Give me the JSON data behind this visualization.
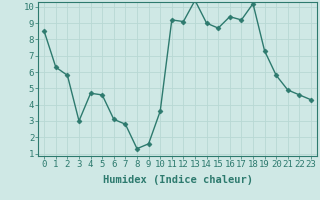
{
  "xlabel": "Humidex (Indice chaleur)",
  "ylabel": "",
  "x_values": [
    0,
    1,
    2,
    3,
    4,
    5,
    6,
    7,
    8,
    9,
    10,
    11,
    12,
    13,
    14,
    15,
    16,
    17,
    18,
    19,
    20,
    21,
    22,
    23
  ],
  "y_values": [
    8.5,
    6.3,
    5.8,
    3.0,
    4.7,
    4.6,
    3.1,
    2.8,
    1.3,
    1.6,
    3.6,
    9.2,
    9.1,
    10.4,
    9.0,
    8.7,
    9.4,
    9.2,
    10.2,
    7.3,
    5.8,
    4.9,
    4.6,
    4.3
  ],
  "line_color": "#2d7a6e",
  "marker": "D",
  "marker_size": 2.5,
  "line_width": 1.0,
  "background_color": "#cfe8e5",
  "grid_color": "#b8d8d4",
  "ylim_min": 1,
  "ylim_max": 10,
  "xlim_min": 0,
  "xlim_max": 23,
  "yticks": [
    1,
    2,
    3,
    4,
    5,
    6,
    7,
    8,
    9,
    10
  ],
  "xticks": [
    0,
    1,
    2,
    3,
    4,
    5,
    6,
    7,
    8,
    9,
    10,
    11,
    12,
    13,
    14,
    15,
    16,
    17,
    18,
    19,
    20,
    21,
    22,
    23
  ],
  "tick_fontsize": 6.5,
  "xlabel_fontsize": 7.5,
  "spine_color": "#2d7a6e",
  "tick_color": "#2d7a6e"
}
